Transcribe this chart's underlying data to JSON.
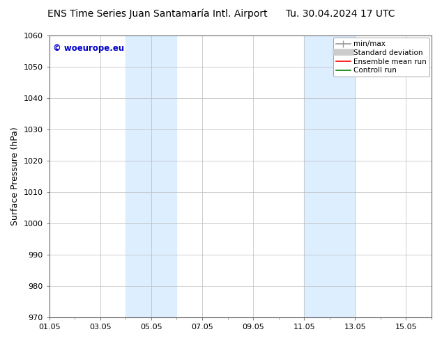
{
  "title_left": "ENS Time Series Juan Santamaría Intl. Airport",
  "title_right": "Tu. 30.04.2024 17 UTC",
  "ylabel": "Surface Pressure (hPa)",
  "ylim": [
    970,
    1060
  ],
  "yticks": [
    970,
    980,
    990,
    1000,
    1010,
    1020,
    1030,
    1040,
    1050,
    1060
  ],
  "xtick_labels": [
    "01.05",
    "03.05",
    "05.05",
    "07.05",
    "09.05",
    "11.05",
    "13.05",
    "15.05"
  ],
  "xtick_days": [
    1,
    3,
    5,
    7,
    9,
    11,
    13,
    15
  ],
  "xlim_days": [
    1,
    16
  ],
  "shaded_bands": [
    {
      "x_start_day": 4,
      "x_end_day": 6,
      "color": "#ddeeff"
    },
    {
      "x_start_day": 11,
      "x_end_day": 13,
      "color": "#ddeeff"
    }
  ],
  "watermark_text": "© woeurope.eu",
  "watermark_color": "#0000cc",
  "legend_items": [
    {
      "label": "min/max",
      "color": "#999999",
      "linewidth": 1.2
    },
    {
      "label": "Standard deviation",
      "color": "#cccccc",
      "linewidth": 7
    },
    {
      "label": "Ensemble mean run",
      "color": "#ff0000",
      "linewidth": 1.2
    },
    {
      "label": "Controll run",
      "color": "#008000",
      "linewidth": 1.2
    }
  ],
  "background_color": "#ffffff",
  "grid_color": "#bbbbbb",
  "title_fontsize": 10,
  "tick_fontsize": 8,
  "ylabel_fontsize": 9,
  "legend_fontsize": 7.5
}
